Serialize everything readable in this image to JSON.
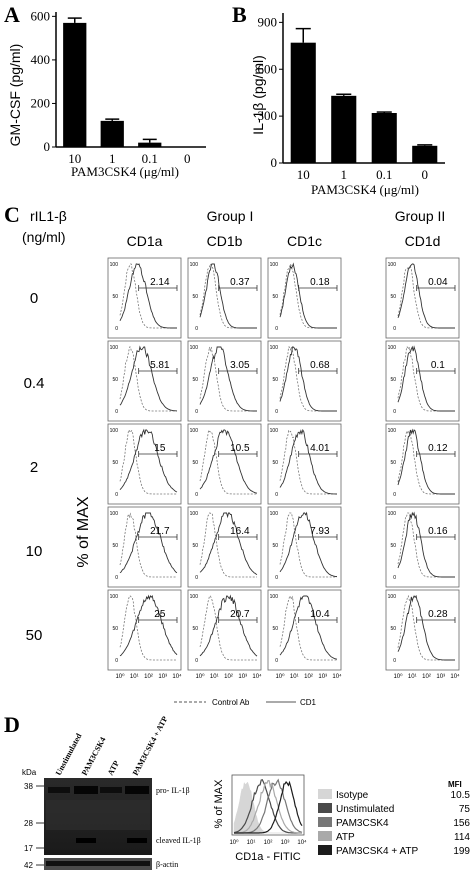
{
  "panel_a": {
    "letter": "A",
    "ylabel": "GM-CSF (pg/ml)",
    "xlabel": "PAM3CSK4 (μg/ml)"
  },
  "panel_b": {
    "letter": "B",
    "ylabel": "IL-1β (pg/ml)",
    "xlabel": "PAM3CSK4 (μg/ml)"
  },
  "panel_c": {
    "letter": "C",
    "row_header": "rIL1-β",
    "row_header_unit": "(ng/ml)",
    "group1": "Group I",
    "group2": "Group II",
    "columns": [
      "CD1a",
      "CD1b",
      "CD1c",
      "CD1d"
    ],
    "rows": [
      "0",
      "0.4",
      "2",
      "10",
      "50"
    ],
    "ylabel": "% of MAX",
    "values": [
      [
        "2.14",
        "0.37",
        "0.18",
        "0.04"
      ],
      [
        "5.81",
        "3.05",
        "0.68",
        "0.1"
      ],
      [
        "15",
        "10.5",
        "4.01",
        "0.12"
      ],
      [
        "21.7",
        "16.4",
        "7.93",
        "0.16"
      ],
      [
        "25",
        "20.7",
        "10.4",
        "0.28"
      ]
    ],
    "ytick_top": "100",
    "ytick_mid": "50",
    "ytick_zero": "0",
    "xticks": [
      "10⁰",
      "10¹",
      "10²",
      "10³",
      "10⁴"
    ],
    "legend_control": "Control Ab",
    "legend_cd1": "CD1"
  },
  "panel_d": {
    "letter": "D",
    "lanes": [
      "Unstimulated",
      "PAM3CSK4",
      "ATP",
      "PAM3CSK4 + ATP"
    ],
    "kda_label": "kDa",
    "markers": [
      "38",
      "28",
      "17",
      "42"
    ],
    "band_labels": [
      "pro- IL-1β",
      "cleaved IL-1β",
      "β-actin"
    ],
    "flow_ylabel": "% of MAX",
    "flow_xlabel": "CD1a - FITIC",
    "mfi_header": "MFI",
    "legend": [
      {
        "label": "Isotype",
        "mfi": "10.5",
        "color": "#d6d6d6"
      },
      {
        "label": "Unstimulated",
        "mfi": "75",
        "color": "#4a4a4a"
      },
      {
        "label": "PAM3CSK4",
        "mfi": "156",
        "color": "#777777"
      },
      {
        "label": "ATP",
        "mfi": "114",
        "color": "#a9a9a9"
      },
      {
        "label": "PAM3CSK4 + ATP",
        "mfi": "199",
        "color": "#1c1c1c"
      }
    ]
  },
  "chart_data": [
    {
      "type": "bar",
      "categories": [
        "10",
        "1",
        "0.1",
        "0"
      ],
      "values": [
        570,
        120,
        20,
        0
      ],
      "errors": [
        22,
        8,
        15,
        0
      ],
      "ylabel": "GM-CSF (pg/ml)",
      "xlabel": "PAM3CSK4 (μg/ml)",
      "yticks": [
        "0",
        "200",
        "400",
        "600"
      ],
      "ylim": [
        0,
        620
      ]
    },
    {
      "type": "bar",
      "categories": [
        "10",
        "1",
        "0.1",
        "0"
      ],
      "values": [
        770,
        430,
        320,
        110
      ],
      "errors": [
        90,
        10,
        6,
        6
      ],
      "ylabel": "IL-1β (pg/ml)",
      "xlabel": "PAM3CSK4 (μg/ml)",
      "yticks": [
        "0",
        "300",
        "600",
        "900"
      ],
      "ylim": [
        0,
        960
      ]
    }
  ]
}
